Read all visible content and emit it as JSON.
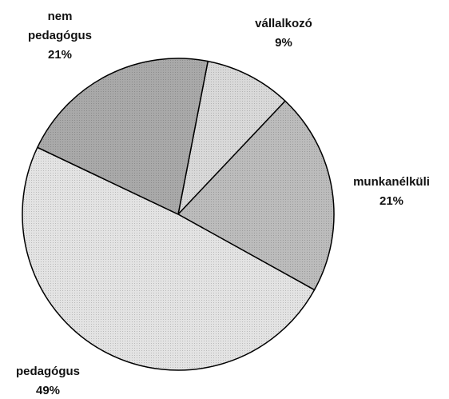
{
  "chart_data": {
    "type": "pie",
    "categories": [
      "vállalkozó",
      "munkanélküli",
      "pedagógus",
      "nem pedagógus"
    ],
    "values": [
      9,
      21,
      49,
      21
    ],
    "value_labels": [
      "9%",
      "21%",
      "49%",
      "21%"
    ],
    "colors": [
      "#d9d9d9",
      "#bcbcbc",
      "#e3e3e3",
      "#a9a9a9"
    ]
  }
}
